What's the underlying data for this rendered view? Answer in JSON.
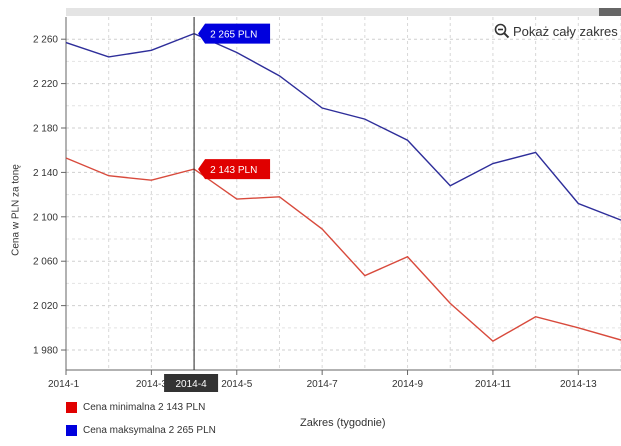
{
  "zoom": {
    "label": "Pokaż cały zakres",
    "icon": "zoom-out-icon"
  },
  "legend": [
    {
      "label": "Cena minimalna 2 143 PLN",
      "color": "#e00000"
    },
    {
      "label": "Cena maksymalna 2 265 PLN",
      "color": "#0000dd"
    }
  ],
  "cursor": {
    "x_label": "2014-4",
    "tooltips": [
      {
        "series": "Cena maksymalna",
        "text": "2 265 PLN",
        "value": 2265,
        "color": "#0000dd"
      },
      {
        "series": "Cena minimalna",
        "text": "2 143 PLN",
        "value": 2143,
        "color": "#e00000"
      }
    ]
  },
  "chart_data": {
    "type": "line",
    "xlabel": "Zakres (tygodnie)",
    "ylabel": "Cena w PLN za tonę",
    "x": [
      1,
      2,
      3,
      4,
      5,
      6,
      7,
      8,
      9,
      10,
      11,
      12,
      13,
      14
    ],
    "x_ticks": [
      {
        "x": 1,
        "label": "2014-1"
      },
      {
        "x": 3,
        "label": "2014-3"
      },
      {
        "x": 5,
        "label": "2014-5"
      },
      {
        "x": 7,
        "label": "2014-7"
      },
      {
        "x": 9,
        "label": "2014-9"
      },
      {
        "x": 11,
        "label": "2014-11"
      },
      {
        "x": 13,
        "label": "2014-13"
      }
    ],
    "y_ticks": [
      {
        "value": 1980,
        "label": "1 980"
      },
      {
        "value": 2020,
        "label": "2 020"
      },
      {
        "value": 2060,
        "label": "2 060"
      },
      {
        "value": 2100,
        "label": "2 100"
      },
      {
        "value": 2140,
        "label": "2 140"
      },
      {
        "value": 2180,
        "label": "2 180"
      },
      {
        "value": 2220,
        "label": "2 220"
      },
      {
        "value": 2260,
        "label": "2 260"
      }
    ],
    "xlim": [
      1,
      14
    ],
    "ylim": [
      1962,
      2280
    ],
    "grid": true,
    "series": [
      {
        "name": "Cena maksymalna",
        "color": "#2e2e9a",
        "values": [
          2257,
          2244,
          2250,
          2265,
          2248,
          2227,
          2198,
          2188,
          2169,
          2128,
          2148,
          2158,
          2112,
          2097
        ]
      },
      {
        "name": "Cena minimalna",
        "color": "#d84a3c",
        "values": [
          2153,
          2137,
          2133,
          2143,
          2116,
          2118,
          2089,
          2047,
          2064,
          2022,
          1988,
          2010,
          2000,
          1989
        ]
      }
    ]
  }
}
